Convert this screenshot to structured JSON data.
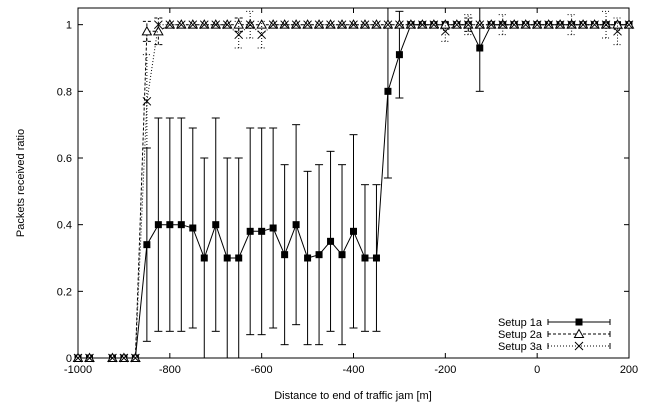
{
  "chart_data": {
    "type": "line",
    "title": "",
    "xlabel": "Distance to end of traffic jam [m]",
    "ylabel": "Packets received ratio",
    "xlim": [
      -1000,
      200
    ],
    "ylim": [
      0,
      1.05
    ],
    "xticks": [
      -1000,
      -800,
      -600,
      -400,
      -200,
      0,
      200
    ],
    "xtick_labels": [
      "-1000",
      "-800",
      "-600",
      "-400",
      "-200",
      "0",
      "200"
    ],
    "yticks": [
      0,
      0.2,
      0.4,
      0.6,
      0.8,
      1
    ],
    "ytick_labels": [
      "0",
      "0.2",
      "0.4",
      "0.6",
      "0.8",
      "1"
    ],
    "grid": false,
    "legend_position": "bottom-right",
    "series": [
      {
        "name": "Setup 1a",
        "marker": "filled-square",
        "line_style": "solid",
        "color": "#000000",
        "x": [
          -1000,
          -975,
          -925,
          -900,
          -875,
          -850,
          -825,
          -800,
          -775,
          -750,
          -725,
          -700,
          -675,
          -650,
          -625,
          -600,
          -575,
          -550,
          -525,
          -500,
          -475,
          -450,
          -425,
          -400,
          -375,
          -350,
          -325,
          -300,
          -275,
          -250,
          -225,
          -200,
          -175,
          -150,
          -125,
          -100,
          -75,
          -50,
          -25,
          0,
          25,
          50,
          75,
          100,
          125,
          150,
          175,
          200
        ],
        "y": [
          0,
          0,
          0,
          0,
          0,
          0.34,
          0.4,
          0.4,
          0.4,
          0.39,
          0.3,
          0.4,
          0.3,
          0.3,
          0.38,
          0.38,
          0.39,
          0.31,
          0.4,
          0.3,
          0.31,
          0.35,
          0.31,
          0.38,
          0.3,
          0.3,
          0.8,
          0.91,
          1.0,
          1.0,
          1.0,
          1.0,
          1.0,
          1.0,
          0.93,
          1.0,
          1.0,
          1.0,
          1.0,
          1.0,
          1.0,
          1.0,
          1.0,
          1.0,
          1.0,
          1.0,
          1.0,
          1.0
        ],
        "err": [
          0,
          0,
          0,
          0,
          0,
          0.29,
          0.32,
          0.32,
          0.32,
          0.3,
          0.3,
          0.32,
          0.3,
          0.3,
          0.31,
          0.31,
          0.3,
          0.27,
          0.3,
          0.26,
          0.27,
          0.27,
          0.27,
          0.29,
          0.22,
          0.22,
          0.26,
          0.13,
          0,
          0,
          0,
          0,
          0,
          0,
          0.13,
          0,
          0,
          0,
          0,
          0,
          0,
          0,
          0,
          0,
          0,
          0,
          0,
          0
        ]
      },
      {
        "name": "Setup 2a",
        "marker": "open-triangle",
        "line_style": "dashed",
        "color": "#000000",
        "x": [
          -1000,
          -975,
          -925,
          -900,
          -875,
          -850,
          -825,
          -800,
          -775,
          -750,
          -725,
          -700,
          -675,
          -650,
          -625,
          -600,
          -575,
          -550,
          -525,
          -500,
          -475,
          -450,
          -425,
          -400,
          -375,
          -350,
          -325,
          -300,
          -275,
          -250,
          -225,
          -200,
          -175,
          -150,
          -125,
          -100,
          -75,
          -50,
          -25,
          0,
          25,
          50,
          75,
          100,
          125,
          150,
          175,
          200
        ],
        "y": [
          0,
          0,
          0,
          0,
          0,
          0.98,
          0.98,
          1.0,
          1.0,
          1.0,
          1.0,
          1.0,
          1.0,
          1.0,
          1.0,
          1.0,
          1.0,
          1.0,
          1.0,
          1.0,
          1.0,
          1.0,
          1.0,
          1.0,
          1.0,
          1.0,
          1.0,
          1.0,
          1.0,
          1.0,
          1.0,
          1.0,
          1.0,
          1.0,
          1.0,
          1.0,
          1.0,
          1.0,
          1.0,
          1.0,
          1.0,
          1.0,
          1.0,
          1.0,
          1.0,
          1.0,
          1.0,
          1.0
        ],
        "err": [
          0,
          0,
          0,
          0,
          0,
          0.03,
          0.04,
          0,
          0,
          0,
          0,
          0,
          0,
          0.02,
          0,
          0,
          0,
          0,
          0,
          0,
          0,
          0,
          0,
          0,
          0,
          0,
          0,
          0,
          0,
          0,
          0,
          0,
          0,
          0.02,
          0,
          0,
          0,
          0,
          0,
          0,
          0,
          0,
          0,
          0,
          0,
          0,
          0,
          0
        ]
      },
      {
        "name": "Setup 3a",
        "marker": "x",
        "line_style": "dotted",
        "color": "#000000",
        "x": [
          -1000,
          -975,
          -925,
          -900,
          -875,
          -850,
          -825,
          -800,
          -775,
          -750,
          -725,
          -700,
          -675,
          -650,
          -625,
          -600,
          -575,
          -550,
          -525,
          -500,
          -475,
          -450,
          -425,
          -400,
          -375,
          -350,
          -325,
          -300,
          -275,
          -250,
          -225,
          -200,
          -175,
          -150,
          -125,
          -100,
          -75,
          -50,
          -25,
          0,
          25,
          50,
          75,
          100,
          125,
          150,
          175,
          200
        ],
        "y": [
          0,
          0,
          0,
          0,
          0,
          0.77,
          1.0,
          1.0,
          1.0,
          1.0,
          1.0,
          1.0,
          1.0,
          0.97,
          1.0,
          0.97,
          1.0,
          1.0,
          1.0,
          1.0,
          1.0,
          1.0,
          1.0,
          1.0,
          1.0,
          1.0,
          1.0,
          1.0,
          1.0,
          1.0,
          1.0,
          0.98,
          1.0,
          1.0,
          1.0,
          1.0,
          1.0,
          1.0,
          1.0,
          1.0,
          1.0,
          1.0,
          1.0,
          1.0,
          1.0,
          1.0,
          0.98,
          1.0
        ],
        "err": [
          0,
          0,
          0,
          0,
          0,
          0.14,
          0,
          0,
          0,
          0,
          0,
          0,
          0,
          0.04,
          0.04,
          0.04,
          0,
          0,
          0,
          0,
          0,
          0,
          0,
          0,
          0,
          0,
          0,
          0,
          0,
          0,
          0,
          0.03,
          0,
          0.03,
          0,
          0,
          0.03,
          0,
          0,
          0,
          0,
          0,
          0.03,
          0,
          0,
          0.04,
          0.04,
          0
        ]
      }
    ]
  }
}
